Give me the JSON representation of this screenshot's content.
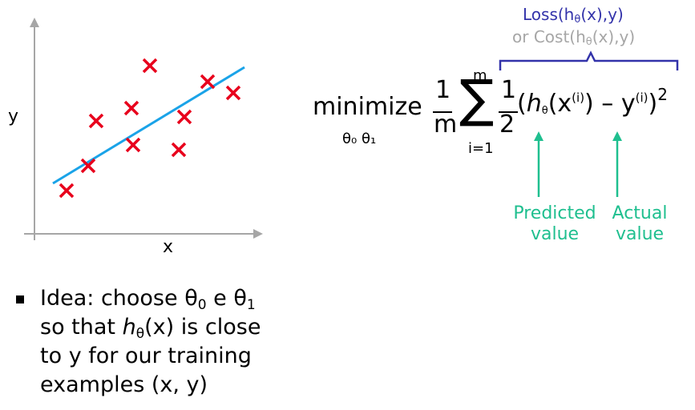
{
  "scatter": {
    "x_label": "x",
    "y_label": "y",
    "colors": {
      "axis": "#a6a6a6",
      "points": "#e8001c",
      "line": "#1aa3e8"
    }
  },
  "idea": {
    "bullet_pre": "Idea: choose ",
    "theta": "θ",
    "sub0": "0",
    "mid": " e ",
    "sub1": "1",
    "line2_pre": "so that ",
    "h": "h",
    "sub_theta": "θ",
    "line2_post": "(x) is close",
    "line3": "to y for our training",
    "line4": "examples (x, y)"
  },
  "formula": {
    "minimize": "minimize",
    "under": "θ₀ θ₁",
    "frac1_num": "1",
    "frac1_den": "m",
    "sum_top": "m",
    "sum_bottom": "i=1",
    "frac2_num": "1",
    "frac2_den": "2",
    "open_paren": "(",
    "h": "h",
    "sub_theta": "θ",
    "x_open": "(x",
    "sup_i": "(i)",
    "x_close": ")",
    "minus": " – ",
    "y": "y",
    "sup_i2": "(i)",
    "close_paren": ")",
    "square": "2"
  },
  "brace_annotation": {
    "loss_pre": "Loss(h",
    "loss_sub": "θ",
    "loss_post": "(x),y)",
    "cost_pre": "or Cost(h",
    "cost_sub": "θ",
    "cost_post": "(x),y)",
    "colors": {
      "loss": "#3333aa",
      "cost": "#a6a6a6"
    }
  },
  "labels": {
    "predicted_line1": "Predicted",
    "predicted_line2": "value",
    "actual_line1": "Actual",
    "actual_line2": "value",
    "color": "#1fbf8f"
  }
}
